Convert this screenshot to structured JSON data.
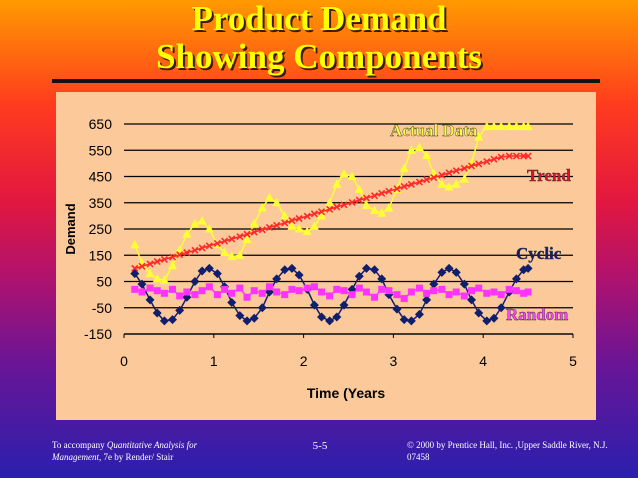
{
  "slide": {
    "title_line1": "Product Demand",
    "title_line2": "Showing Components",
    "footer_left_pre": "To accompany ",
    "footer_left_book": "Quantitative Analysis for Management",
    "footer_left_post": ", 7e by Render/ Stair",
    "footer_center": "5-5",
    "footer_right": "© 2000 by Prentice Hall, Inc. ,Upper Saddle River, N.J. 07458"
  },
  "colors": {
    "actual": "#ffff33",
    "trend": "#ff2a2a",
    "cyclic": "#0f1f6e",
    "random": "#ff33ff",
    "trend_label": "#e0102a",
    "cyclic_label": "#101c70",
    "random_label": "#ff40ff",
    "actual_label": "#ffff40"
  },
  "chart_data": {
    "type": "line",
    "xlabel": "Time (Years",
    "ylabel": "Demand",
    "xlim": [
      0,
      5
    ],
    "ylim": [
      -150,
      650
    ],
    "x_ticks": [
      "0",
      "1",
      "2",
      "3",
      "4",
      "5"
    ],
    "y_ticks": [
      "650",
      "550",
      "450",
      "350",
      "250",
      "150",
      "50",
      "-50",
      "-150"
    ],
    "grid": "horizontal",
    "x": [
      0.12,
      0.2,
      0.29,
      0.37,
      0.45,
      0.54,
      0.62,
      0.7,
      0.79,
      0.87,
      0.95,
      1.04,
      1.12,
      1.2,
      1.29,
      1.37,
      1.45,
      1.54,
      1.62,
      1.7,
      1.79,
      1.87,
      1.95,
      2.04,
      2.12,
      2.2,
      2.29,
      2.37,
      2.45,
      2.54,
      2.62,
      2.7,
      2.79,
      2.87,
      2.95,
      3.04,
      3.12,
      3.2,
      3.29,
      3.37,
      3.45,
      3.54,
      3.62,
      3.7,
      3.79,
      3.87,
      3.95,
      4.04,
      4.12,
      4.2,
      4.29,
      4.37,
      4.45,
      4.5
    ],
    "series": [
      {
        "name": "Actual Data",
        "values": [
          190,
          120,
          80,
          60,
          55,
          110,
          170,
          230,
          270,
          280,
          250,
          190,
          160,
          145,
          150,
          210,
          270,
          330,
          370,
          350,
          300,
          260,
          250,
          240,
          260,
          300,
          350,
          420,
          460,
          450,
          400,
          340,
          320,
          310,
          330,
          400,
          480,
          550,
          560,
          530,
          460,
          420,
          410,
          420,
          440,
          500,
          600,
          640,
          640,
          640,
          640,
          640,
          640,
          640
        ]
      },
      {
        "name": "Trend",
        "values": [
          100,
          108,
          117,
          126,
          134,
          143,
          152,
          160,
          169,
          178,
          186,
          195,
          204,
          212,
          221,
          230,
          238,
          247,
          256,
          264,
          273,
          282,
          290,
          299,
          308,
          316,
          325,
          334,
          342,
          351,
          360,
          368,
          377,
          386,
          394,
          403,
          412,
          420,
          429,
          438,
          446,
          455,
          464,
          472,
          481,
          490,
          498,
          507,
          516,
          524,
          528,
          528,
          528,
          528
        ]
      },
      {
        "name": "Cyclic",
        "values": [
          80,
          40,
          -20,
          -70,
          -100,
          -95,
          -60,
          -10,
          50,
          90,
          100,
          80,
          30,
          -30,
          -80,
          -100,
          -90,
          -50,
          10,
          60,
          95,
          100,
          75,
          20,
          -40,
          -85,
          -100,
          -85,
          -40,
          20,
          70,
          100,
          95,
          60,
          0,
          -55,
          -95,
          -100,
          -75,
          -20,
          40,
          85,
          100,
          85,
          40,
          -20,
          -70,
          -100,
          -90,
          -50,
          10,
          60,
          95,
          100
        ]
      },
      {
        "name": "Random",
        "values": [
          20,
          10,
          25,
          15,
          5,
          20,
          -5,
          10,
          0,
          15,
          30,
          0,
          20,
          5,
          25,
          -10,
          15,
          5,
          30,
          10,
          0,
          20,
          15,
          25,
          30,
          10,
          -5,
          20,
          15,
          0,
          25,
          10,
          -10,
          20,
          15,
          0,
          -15,
          10,
          25,
          5,
          15,
          20,
          0,
          10,
          -5,
          15,
          25,
          5,
          10,
          0,
          20,
          15,
          5,
          10
        ]
      }
    ],
    "annotations": {
      "actual": "Actual Data",
      "trend": "Trend",
      "cyclic": "Cyclic",
      "random": "Random"
    }
  }
}
